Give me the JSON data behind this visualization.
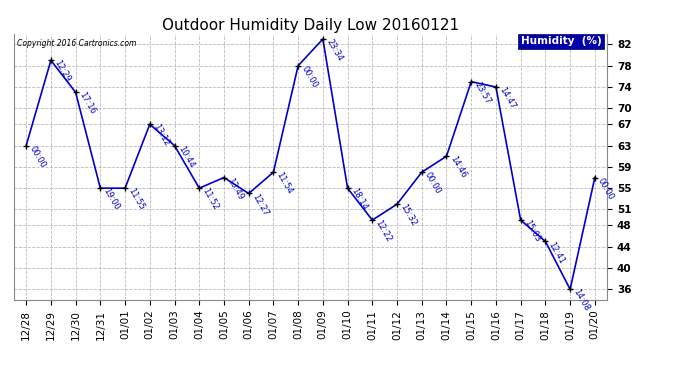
{
  "title": "Outdoor Humidity Daily Low 20160121",
  "copyright": "Copyright 2016 Cartronics.com",
  "ylabel": "Humidity (%)",
  "background_color": "#ffffff",
  "plot_bg_color": "#ffffff",
  "grid_color": "#aaaaaa",
  "line_color": "#0000cc",
  "marker_color": "#000000",
  "text_color": "#0000cc",
  "ylim": [
    34,
    84
  ],
  "yticks": [
    36,
    40,
    44,
    48,
    51,
    55,
    59,
    63,
    67,
    70,
    74,
    78,
    82
  ],
  "dates": [
    "12/28",
    "12/29",
    "12/30",
    "12/31",
    "01/01",
    "01/02",
    "01/03",
    "01/04",
    "01/05",
    "01/06",
    "01/07",
    "01/08",
    "01/09",
    "01/10",
    "01/11",
    "01/12",
    "01/13",
    "01/14",
    "01/15",
    "01/16",
    "01/17",
    "01/18",
    "01/19",
    "01/20"
  ],
  "values": [
    63,
    79,
    73,
    55,
    55,
    67,
    63,
    55,
    57,
    54,
    58,
    78,
    83,
    55,
    49,
    52,
    58,
    61,
    75,
    74,
    49,
    45,
    36,
    57
  ],
  "times": [
    "00:00",
    "12:29",
    "17:16",
    "19:00",
    "11:55",
    "13:12",
    "10:44",
    "11:52",
    "13:49",
    "12:27",
    "11:54",
    "00:00",
    "23:34",
    "18:14",
    "12:22",
    "15:32",
    "00:00",
    "14:46",
    "23:57",
    "14:47",
    "15:03",
    "12:41",
    "14:08",
    "00:00"
  ],
  "title_fontsize": 11,
  "tick_fontsize": 7.5,
  "label_fontsize": 8,
  "annot_fontsize": 6.0,
  "legend_text": "Humidity  (%)",
  "legend_bg": "#0000aa",
  "legend_fg": "#ffffff"
}
